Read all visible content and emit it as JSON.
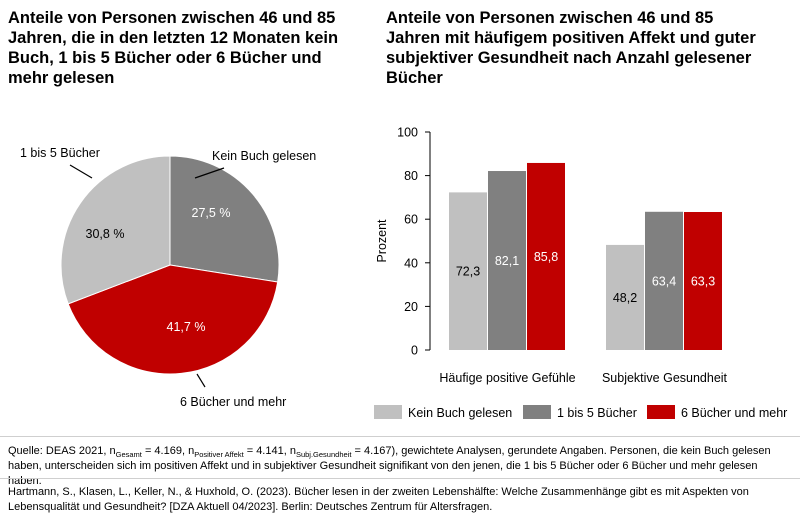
{
  "chart_data": [
    {
      "type": "pie",
      "title": "Anteile von Personen zwischen 46 und 85 Jahren, die in den letzten 12 Monaten kein Buch, 1 bis 5 Bücher oder 6 Bücher und mehr gelesen",
      "slices": [
        {
          "label": "Kein Buch gelesen",
          "value": 27.5,
          "value_label": "27,5 %",
          "color": "#808080"
        },
        {
          "label": "6 Bücher und mehr",
          "value": 41.7,
          "value_label": "41,7 %",
          "color": "#c00000"
        },
        {
          "label": "1 bis 5 Bücher",
          "value": 30.8,
          "value_label": "30,8 %",
          "color": "#c0c0c0"
        }
      ]
    },
    {
      "type": "bar",
      "title": "Anteile von Personen zwischen 46 und 85 Jahren mit häufigem positiven Affekt und guter subjektiver Gesundheit nach Anzahl gelesener Bücher",
      "categories": [
        "Häufige positive Gefühle",
        "Subjektive Gesundheit"
      ],
      "series": [
        {
          "name": "Kein Buch gelesen",
          "values": [
            72.3,
            48.2
          ],
          "labels": [
            "72,3",
            "48,2"
          ],
          "color": "#c0c0c0",
          "label_color": "#000000"
        },
        {
          "name": "1 bis 5 Bücher",
          "values": [
            82.1,
            63.4
          ],
          "labels": [
            "82,1",
            "63,4"
          ],
          "color": "#808080",
          "label_color": "#ffffff"
        },
        {
          "name": "6 Bücher und mehr",
          "values": [
            85.8,
            63.3
          ],
          "labels": [
            "85,8",
            "63,3"
          ],
          "color": "#c00000",
          "label_color": "#ffffff"
        }
      ],
      "ylabel": "Prozent",
      "ylim": [
        0,
        100
      ],
      "yticks": [
        0,
        20,
        40,
        60,
        80,
        100
      ],
      "grid": false,
      "legend": "bottom"
    }
  ],
  "footer": {
    "source_prefix": "Quelle: DEAS 2021, n",
    "n_gesamt_sub": "Gesamt",
    "n_gesamt_val": " = 4.169, n",
    "n_affekt_sub": "Positiver Affekt",
    "n_affekt_val": " = 4.141, n",
    "n_gesund_sub": "Subj.Gesundheit",
    "n_gesund_val": " = 4.167), gewichtete Analysen, gerundete Angaben. Personen, die kein Buch gelesen haben, unterscheiden sich im positiven Affekt und in subjektiver Gesundheit signifikant von den jenen, die 1 bis 5 Bücher oder 6 Bücher und mehr gelesen haben.",
    "citation": "Hartmann, S., Klasen, L., Keller, N., & Huxhold, O. (2023). Bücher lesen in der zweiten Lebenshälfte: Welche Zusammenhänge gibt es mit Aspekten von Lebensqualität und Gesundheit? [DZA Aktuell 04/2023]. Berlin: Deutsches Zentrum für Altersfragen."
  }
}
